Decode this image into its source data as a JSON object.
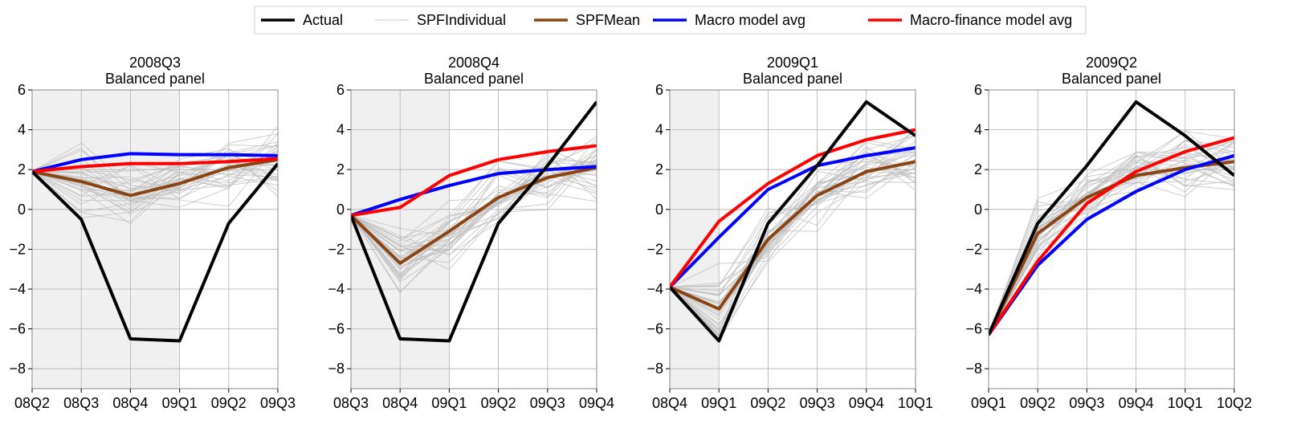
{
  "legend": {
    "items": [
      {
        "label": "Actual",
        "color": "#000000"
      },
      {
        "label": "SPFIndividual",
        "color": "#c8c8c8"
      },
      {
        "label": "SPFMean",
        "color": "#8B4513"
      },
      {
        "label": "Macro model avg",
        "color": "#0000ff"
      },
      {
        "label": "Macro-finance model avg",
        "color": "#ff0000"
      }
    ]
  },
  "chart_data": [
    {
      "type": "line",
      "title": "2008Q3",
      "subtitle": "Balanced panel",
      "x": [
        "08Q2",
        "08Q3",
        "08Q4",
        "09Q1",
        "09Q2",
        "09Q3"
      ],
      "ylim": [
        -9,
        6
      ],
      "yticks": [
        -8,
        -6,
        -4,
        -2,
        0,
        2,
        4,
        6
      ],
      "shaded_x_range": [
        "08Q2",
        "09Q1"
      ],
      "grid": true,
      "series": [
        {
          "name": "Actual",
          "values": [
            1.9,
            -0.5,
            -6.5,
            -6.6,
            -0.7,
            2.3
          ]
        },
        {
          "name": "SPFMean",
          "values": [
            1.9,
            1.4,
            0.7,
            1.3,
            2.1,
            2.5
          ]
        },
        {
          "name": "Macro model avg",
          "values": [
            1.9,
            2.5,
            2.8,
            2.75,
            2.75,
            2.7
          ]
        },
        {
          "name": "Macro-finance model avg",
          "values": [
            1.9,
            2.15,
            2.3,
            2.3,
            2.4,
            2.55
          ]
        }
      ]
    },
    {
      "type": "line",
      "title": "2008Q4",
      "subtitle": "Balanced panel",
      "x": [
        "08Q3",
        "08Q4",
        "09Q1",
        "09Q2",
        "09Q3",
        "09Q4"
      ],
      "ylim": [
        -9,
        6
      ],
      "yticks": [
        -8,
        -6,
        -4,
        -2,
        0,
        2,
        4,
        6
      ],
      "shaded_x_range": [
        "08Q3",
        "09Q1"
      ],
      "grid": true,
      "series": [
        {
          "name": "Actual",
          "values": [
            -0.3,
            -6.5,
            -6.6,
            -0.7,
            2.2,
            5.4
          ]
        },
        {
          "name": "SPFMean",
          "values": [
            -0.3,
            -2.7,
            -1.1,
            0.6,
            1.6,
            2.1
          ]
        },
        {
          "name": "Macro model avg",
          "values": [
            -0.3,
            0.5,
            1.2,
            1.8,
            2.0,
            2.15
          ]
        },
        {
          "name": "Macro-finance model avg",
          "values": [
            -0.3,
            0.1,
            1.7,
            2.5,
            2.9,
            3.2
          ]
        }
      ]
    },
    {
      "type": "line",
      "title": "2009Q1",
      "subtitle": "Balanced panel",
      "x": [
        "08Q4",
        "09Q1",
        "09Q2",
        "09Q3",
        "09Q4",
        "10Q1"
      ],
      "ylim": [
        -9,
        6
      ],
      "yticks": [
        -8,
        -6,
        -4,
        -2,
        0,
        2,
        4,
        6
      ],
      "shaded_x_range": [
        "08Q4",
        "09Q1"
      ],
      "grid": true,
      "series": [
        {
          "name": "Actual",
          "values": [
            -3.9,
            -6.6,
            -0.7,
            2.2,
            5.4,
            3.7
          ]
        },
        {
          "name": "SPFMean",
          "values": [
            -3.9,
            -5.0,
            -1.5,
            0.7,
            1.9,
            2.4
          ]
        },
        {
          "name": "Macro model avg",
          "values": [
            -3.9,
            -1.4,
            1.0,
            2.2,
            2.7,
            3.1
          ]
        },
        {
          "name": "Macro-finance model avg",
          "values": [
            -3.9,
            -0.6,
            1.3,
            2.7,
            3.5,
            4.0
          ]
        }
      ]
    },
    {
      "type": "line",
      "title": "2009Q2",
      "subtitle": "Balanced panel",
      "x": [
        "09Q1",
        "09Q2",
        "09Q3",
        "09Q4",
        "10Q1",
        "10Q2"
      ],
      "ylim": [
        -9,
        6
      ],
      "yticks": [
        -8,
        -6,
        -4,
        -2,
        0,
        2,
        4,
        6
      ],
      "shaded_x_range": null,
      "grid": true,
      "series": [
        {
          "name": "Actual",
          "values": [
            -6.3,
            -0.7,
            2.2,
            5.4,
            3.7,
            1.7
          ]
        },
        {
          "name": "SPFMean",
          "values": [
            -6.3,
            -1.2,
            0.6,
            1.7,
            2.1,
            2.4
          ]
        },
        {
          "name": "Macro model avg",
          "values": [
            -6.3,
            -2.8,
            -0.5,
            0.9,
            2.0,
            2.7
          ]
        },
        {
          "name": "Macro-finance model avg",
          "values": [
            -6.3,
            -2.6,
            0.3,
            1.9,
            2.9,
            3.6
          ]
        }
      ]
    }
  ]
}
